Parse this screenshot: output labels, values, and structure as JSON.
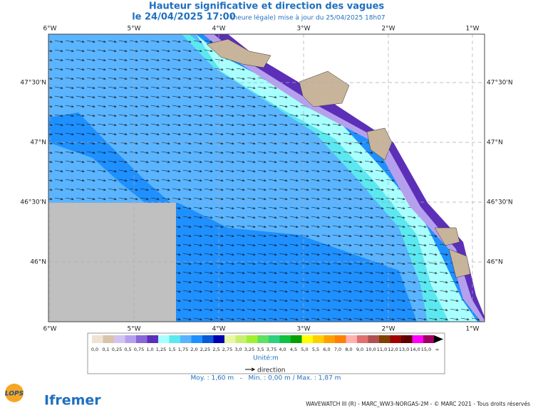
{
  "header": {
    "title": "Hauteur significative et direction des vagues",
    "date": "le 24/04/2025 17:00",
    "note": "(heure légale) mise à jour du 25/04/2025 18h07"
  },
  "map": {
    "longitude_labels": [
      "6°W",
      "5°W",
      "4°W",
      "3°W",
      "2°W",
      "1°W"
    ],
    "latitude_labels": [
      "47°30'N",
      "47°N",
      "46°30'N",
      "46°N"
    ]
  },
  "legend": {
    "colors": [
      "#efe3d3",
      "#d9c3a9",
      "#d3c3f3",
      "#b6a0ee",
      "#8a66d9",
      "#5c2fb8",
      "#a8ffff",
      "#5ce8f0",
      "#5ab4ff",
      "#1e90ff",
      "#0a5ad8",
      "#0000b0",
      "#e8f8a0",
      "#c8f070",
      "#a0f030",
      "#60e060",
      "#30d080",
      "#10c040",
      "#00a000",
      "#ffff00",
      "#ffd000",
      "#ffa000",
      "#ff8000",
      "#ffb0b0",
      "#e07070",
      "#b05050",
      "#804000",
      "#a00000",
      "#600000",
      "#ff00ff",
      "#a00060"
    ],
    "labels": [
      "0,0",
      "0,1",
      "0,25",
      "0,5",
      "0,75",
      "1,0",
      "1,25",
      "1,5",
      "1,75",
      "2,0",
      "2,25",
      "2,5",
      "2,75",
      "3,0",
      "3,25",
      "3,5",
      "3,75",
      "4,0",
      "4,5",
      "5,0",
      "5,5",
      "6,0",
      "7,0",
      "8,0",
      "9,0",
      "10,0",
      "11,0",
      "12,0",
      "13,0",
      "14,0",
      "15,0",
      "∞"
    ],
    "unit": "Unité:m",
    "direction": "direction"
  },
  "stats": "Moy. : 1,60 m   -   Min. : 0,00 m / Max. : 1,87 m",
  "footer": "WAVEWATCH III (R) - MARC_WW3-NORGAS-2M - © MARC 2021 - Tous droits réservés",
  "logos": [
    "LOPS",
    "Ifremer"
  ]
}
